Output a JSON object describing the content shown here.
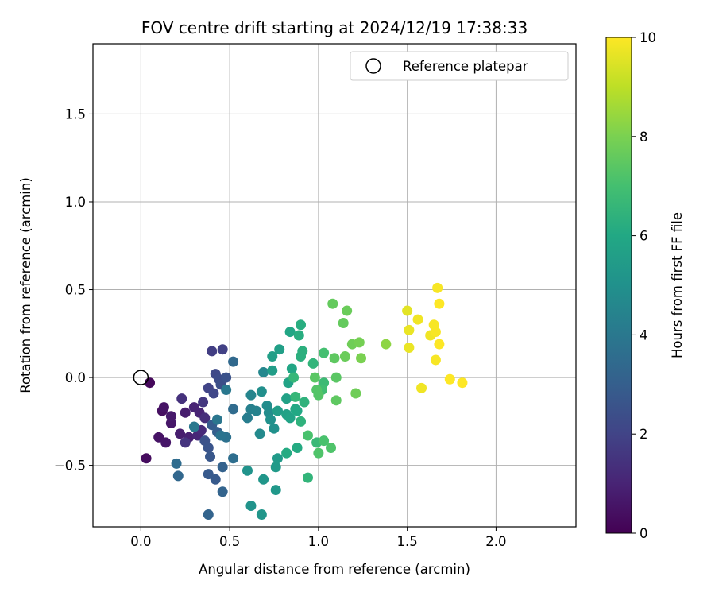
{
  "chart_data": {
    "type": "scatter",
    "title": "FOV centre drift starting at 2024/12/19 17:38:33",
    "xlabel": "Angular distance from reference (arcmin)",
    "ylabel": "Rotation from reference (arcmin)",
    "xlim": [
      -0.27,
      2.45
    ],
    "ylim": [
      -0.85,
      1.9
    ],
    "xticks": [
      0.0,
      0.5,
      1.0,
      1.5,
      2.0
    ],
    "xtick_labels": [
      "0.0",
      "0.5",
      "1.0",
      "1.5",
      "2.0"
    ],
    "yticks": [
      -0.5,
      0.0,
      0.5,
      1.0,
      1.5
    ],
    "ytick_labels": [
      "−0.5",
      "0.0",
      "0.5",
      "1.0",
      "1.5"
    ],
    "grid": true,
    "legend": {
      "position": "top-right",
      "entries": [
        "Reference platepar"
      ]
    },
    "reference_point": {
      "x": 0.0,
      "y": 0.0
    },
    "colorbar": {
      "label": "Hours from first FF file",
      "colormap": "viridis",
      "range": [
        0,
        10
      ],
      "ticks": [
        0,
        2,
        4,
        6,
        8,
        10
      ],
      "tick_labels": [
        "0",
        "2",
        "4",
        "6",
        "8",
        "10"
      ]
    },
    "points": [
      {
        "x": 0.05,
        "y": -0.03,
        "c": 0.2
      },
      {
        "x": 0.03,
        "y": -0.46,
        "c": 0.3
      },
      {
        "x": 0.12,
        "y": -0.19,
        "c": 0.4
      },
      {
        "x": 0.13,
        "y": -0.17,
        "c": 0.5
      },
      {
        "x": 0.1,
        "y": -0.34,
        "c": 0.5
      },
      {
        "x": 0.14,
        "y": -0.37,
        "c": 0.6
      },
      {
        "x": 0.17,
        "y": -0.26,
        "c": 0.6
      },
      {
        "x": 0.17,
        "y": -0.22,
        "c": 0.7
      },
      {
        "x": 0.22,
        "y": -0.32,
        "c": 0.8
      },
      {
        "x": 0.25,
        "y": -0.2,
        "c": 0.8
      },
      {
        "x": 0.27,
        "y": -0.34,
        "c": 0.9
      },
      {
        "x": 0.3,
        "y": -0.17,
        "c": 1.0
      },
      {
        "x": 0.33,
        "y": -0.2,
        "c": 1.0
      },
      {
        "x": 0.32,
        "y": -0.33,
        "c": 1.1
      },
      {
        "x": 0.34,
        "y": -0.3,
        "c": 1.2
      },
      {
        "x": 0.36,
        "y": -0.23,
        "c": 1.3
      },
      {
        "x": 0.23,
        "y": -0.12,
        "c": 1.4
      },
      {
        "x": 0.25,
        "y": -0.37,
        "c": 1.5
      },
      {
        "x": 0.35,
        "y": -0.14,
        "c": 1.6
      },
      {
        "x": 0.4,
        "y": 0.15,
        "c": 1.8
      },
      {
        "x": 0.46,
        "y": 0.16,
        "c": 1.9
      },
      {
        "x": 0.38,
        "y": -0.06,
        "c": 2.0
      },
      {
        "x": 0.41,
        "y": -0.09,
        "c": 2.1
      },
      {
        "x": 0.42,
        "y": 0.02,
        "c": 2.2
      },
      {
        "x": 0.44,
        "y": -0.01,
        "c": 2.3
      },
      {
        "x": 0.45,
        "y": -0.04,
        "c": 2.4
      },
      {
        "x": 0.48,
        "y": 0.0,
        "c": 2.5
      },
      {
        "x": 0.36,
        "y": -0.36,
        "c": 2.5
      },
      {
        "x": 0.38,
        "y": -0.4,
        "c": 2.6
      },
      {
        "x": 0.39,
        "y": -0.45,
        "c": 2.7
      },
      {
        "x": 0.38,
        "y": -0.55,
        "c": 2.8
      },
      {
        "x": 0.42,
        "y": -0.58,
        "c": 2.8
      },
      {
        "x": 0.4,
        "y": -0.27,
        "c": 2.9
      },
      {
        "x": 0.43,
        "y": -0.31,
        "c": 3.0
      },
      {
        "x": 0.46,
        "y": -0.51,
        "c": 3.1
      },
      {
        "x": 0.46,
        "y": -0.65,
        "c": 3.2
      },
      {
        "x": 0.38,
        "y": -0.78,
        "c": 3.2
      },
      {
        "x": 0.21,
        "y": -0.56,
        "c": 3.3
      },
      {
        "x": 0.2,
        "y": -0.49,
        "c": 3.5
      },
      {
        "x": 0.52,
        "y": 0.09,
        "c": 3.4
      },
      {
        "x": 0.52,
        "y": -0.18,
        "c": 3.5
      },
      {
        "x": 0.52,
        "y": -0.46,
        "c": 3.6
      },
      {
        "x": 0.48,
        "y": -0.34,
        "c": 3.7
      },
      {
        "x": 0.45,
        "y": -0.33,
        "c": 3.8
      },
      {
        "x": 0.43,
        "y": -0.24,
        "c": 3.9
      },
      {
        "x": 0.3,
        "y": -0.28,
        "c": 4.0
      },
      {
        "x": 0.48,
        "y": -0.07,
        "c": 4.0
      },
      {
        "x": 0.6,
        "y": -0.23,
        "c": 4.2
      },
      {
        "x": 0.62,
        "y": -0.18,
        "c": 4.3
      },
      {
        "x": 0.65,
        "y": -0.19,
        "c": 4.4
      },
      {
        "x": 0.62,
        "y": -0.1,
        "c": 4.5
      },
      {
        "x": 0.69,
        "y": 0.03,
        "c": 4.6
      },
      {
        "x": 0.67,
        "y": -0.32,
        "c": 4.7
      },
      {
        "x": 0.71,
        "y": -0.16,
        "c": 4.8
      },
      {
        "x": 0.72,
        "y": -0.2,
        "c": 4.8
      },
      {
        "x": 0.68,
        "y": -0.08,
        "c": 4.9
      },
      {
        "x": 0.73,
        "y": -0.24,
        "c": 5.0
      },
      {
        "x": 0.75,
        "y": -0.29,
        "c": 5.0
      },
      {
        "x": 0.6,
        "y": -0.53,
        "c": 5.1
      },
      {
        "x": 0.62,
        "y": -0.73,
        "c": 5.1
      },
      {
        "x": 0.69,
        "y": -0.58,
        "c": 5.2
      },
      {
        "x": 0.68,
        "y": -0.78,
        "c": 5.2
      },
      {
        "x": 0.76,
        "y": -0.64,
        "c": 5.3
      },
      {
        "x": 0.76,
        "y": -0.51,
        "c": 5.4
      },
      {
        "x": 0.77,
        "y": -0.46,
        "c": 5.4
      },
      {
        "x": 0.77,
        "y": -0.19,
        "c": 5.5
      },
      {
        "x": 0.74,
        "y": 0.04,
        "c": 5.5
      },
      {
        "x": 0.74,
        "y": 0.12,
        "c": 5.6
      },
      {
        "x": 0.78,
        "y": 0.16,
        "c": 5.6
      },
      {
        "x": 0.82,
        "y": -0.12,
        "c": 5.7
      },
      {
        "x": 0.82,
        "y": -0.21,
        "c": 5.7
      },
      {
        "x": 0.84,
        "y": -0.23,
        "c": 5.8
      },
      {
        "x": 0.83,
        "y": -0.03,
        "c": 5.8
      },
      {
        "x": 0.85,
        "y": 0.05,
        "c": 5.9
      },
      {
        "x": 0.84,
        "y": 0.26,
        "c": 5.9
      },
      {
        "x": 0.87,
        "y": -0.18,
        "c": 6.0
      },
      {
        "x": 0.88,
        "y": -0.19,
        "c": 6.0
      },
      {
        "x": 0.88,
        "y": -0.4,
        "c": 6.1
      },
      {
        "x": 0.82,
        "y": -0.43,
        "c": 6.1
      },
      {
        "x": 0.89,
        "y": 0.24,
        "c": 6.2
      },
      {
        "x": 0.9,
        "y": 0.3,
        "c": 6.2
      },
      {
        "x": 0.9,
        "y": 0.12,
        "c": 6.3
      },
      {
        "x": 0.91,
        "y": 0.15,
        "c": 6.3
      },
      {
        "x": 0.92,
        "y": -0.14,
        "c": 6.4
      },
      {
        "x": 0.9,
        "y": -0.25,
        "c": 6.4
      },
      {
        "x": 0.94,
        "y": -0.57,
        "c": 6.5
      },
      {
        "x": 0.97,
        "y": 0.08,
        "c": 6.5
      },
      {
        "x": 0.87,
        "y": -0.11,
        "c": 6.6
      },
      {
        "x": 0.86,
        "y": 0.0,
        "c": 6.6
      },
      {
        "x": 0.99,
        "y": -0.37,
        "c": 6.7
      },
      {
        "x": 1.0,
        "y": -0.09,
        "c": 6.7
      },
      {
        "x": 1.03,
        "y": -0.03,
        "c": 6.8
      },
      {
        "x": 1.02,
        "y": -0.07,
        "c": 6.9
      },
      {
        "x": 1.03,
        "y": 0.14,
        "c": 7.0
      },
      {
        "x": 0.94,
        "y": -0.33,
        "c": 7.1
      },
      {
        "x": 1.03,
        "y": -0.36,
        "c": 7.1
      },
      {
        "x": 1.0,
        "y": -0.43,
        "c": 7.2
      },
      {
        "x": 1.07,
        "y": -0.4,
        "c": 7.2
      },
      {
        "x": 0.99,
        "y": -0.07,
        "c": 7.3
      },
      {
        "x": 1.0,
        "y": -0.1,
        "c": 7.3
      },
      {
        "x": 0.98,
        "y": 0.0,
        "c": 7.4
      },
      {
        "x": 1.1,
        "y": 0.0,
        "c": 7.4
      },
      {
        "x": 1.1,
        "y": -0.13,
        "c": 7.5
      },
      {
        "x": 1.09,
        "y": 0.11,
        "c": 7.5
      },
      {
        "x": 1.08,
        "y": 0.42,
        "c": 7.6
      },
      {
        "x": 1.14,
        "y": 0.31,
        "c": 7.6
      },
      {
        "x": 1.16,
        "y": 0.38,
        "c": 7.7
      },
      {
        "x": 1.15,
        "y": 0.12,
        "c": 7.7
      },
      {
        "x": 1.21,
        "y": -0.09,
        "c": 7.8
      },
      {
        "x": 1.19,
        "y": 0.19,
        "c": 7.8
      },
      {
        "x": 1.23,
        "y": 0.2,
        "c": 7.9
      },
      {
        "x": 1.24,
        "y": 0.11,
        "c": 8.0
      },
      {
        "x": 1.38,
        "y": 0.19,
        "c": 8.3
      },
      {
        "x": 1.5,
        "y": 0.38,
        "c": 9.6
      },
      {
        "x": 1.51,
        "y": 0.17,
        "c": 9.7
      },
      {
        "x": 1.51,
        "y": 0.27,
        "c": 9.7
      },
      {
        "x": 1.56,
        "y": 0.33,
        "c": 9.8
      },
      {
        "x": 1.58,
        "y": -0.06,
        "c": 9.8
      },
      {
        "x": 1.63,
        "y": 0.24,
        "c": 9.8
      },
      {
        "x": 1.65,
        "y": 0.3,
        "c": 9.9
      },
      {
        "x": 1.66,
        "y": 0.26,
        "c": 9.9
      },
      {
        "x": 1.67,
        "y": 0.51,
        "c": 9.9
      },
      {
        "x": 1.66,
        "y": 0.1,
        "c": 9.9
      },
      {
        "x": 1.68,
        "y": 0.42,
        "c": 10.0
      },
      {
        "x": 1.68,
        "y": 0.19,
        "c": 10.0
      },
      {
        "x": 1.74,
        "y": -0.01,
        "c": 10.0
      },
      {
        "x": 1.81,
        "y": -0.03,
        "c": 10.0
      }
    ]
  }
}
